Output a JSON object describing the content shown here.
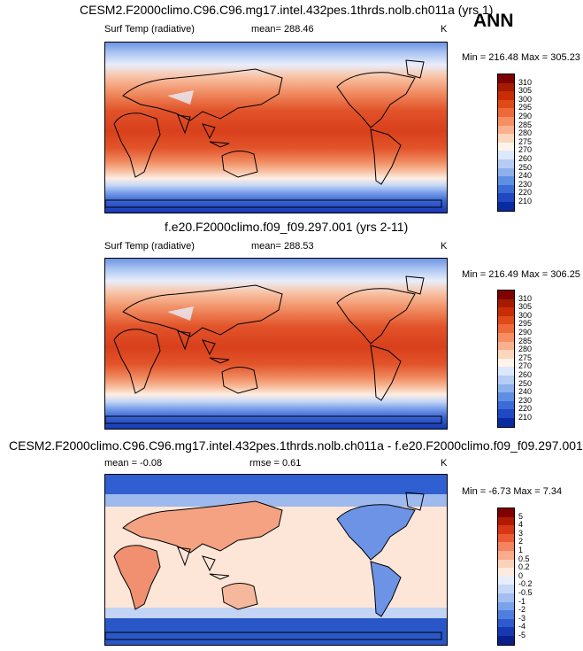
{
  "ann_label": "ANN",
  "panels": [
    {
      "title": "CESM2.F2000climo.C96.C96.mg17.intel.432pes.1thrds.nolb.ch011a (yrs 1)",
      "left_label": "Surf Temp (radiative)",
      "center_label": "mean= 288.46",
      "units": "K",
      "minmax": "Min = 216.48 Max = 305.23",
      "colorbar": {
        "labels": [
          "310",
          "305",
          "300",
          "295",
          "290",
          "285",
          "280",
          "275",
          "270",
          "260",
          "250",
          "240",
          "230",
          "220",
          "210"
        ],
        "colors": [
          "#7f0000",
          "#a51b00",
          "#c92d05",
          "#e04a18",
          "#ee6a3a",
          "#f58e63",
          "#f9b08e",
          "#fcd6bd",
          "#fff4ea",
          "#dce8fb",
          "#b5cdf5",
          "#8cb1ec",
          "#5f8fe3",
          "#3a6bd6",
          "#1f48c2",
          "#0a2aa0"
        ]
      }
    },
    {
      "title": "f.e20.F2000climo.f09_f09.297.001 (yrs 2-11)",
      "left_label": "Surf Temp (radiative)",
      "center_label": "mean= 288.53",
      "units": "K",
      "minmax": "Min = 216.49 Max = 306.25",
      "colorbar": {
        "labels": [
          "310",
          "305",
          "300",
          "295",
          "290",
          "285",
          "280",
          "275",
          "270",
          "260",
          "250",
          "240",
          "230",
          "220",
          "210"
        ],
        "colors": [
          "#7f0000",
          "#a51b00",
          "#c92d05",
          "#e04a18",
          "#ee6a3a",
          "#f58e63",
          "#f9b08e",
          "#fcd6bd",
          "#fff4ea",
          "#dce8fb",
          "#b5cdf5",
          "#8cb1ec",
          "#5f8fe3",
          "#3a6bd6",
          "#1f48c2",
          "#0a2aa0"
        ]
      }
    },
    {
      "title": "CESM2.F2000climo.C96.C96.mg17.intel.432pes.1thrds.nolb.ch011a - f.e20.F2000climo.f09_f09.297.001",
      "left_label": "mean = -0.08",
      "center_label": "rmse = 0.61",
      "units": "K",
      "minmax": "Min = -6.73 Max = 7.34",
      "colorbar": {
        "labels": [
          "5",
          "4",
          "3",
          "2",
          "1",
          "0.5",
          "0.2",
          "0",
          "-0.2",
          "-0.5",
          "-1",
          "-2",
          "-3",
          "-4",
          "-5"
        ],
        "colors": [
          "#7f0000",
          "#b01a00",
          "#d83616",
          "#ec5a34",
          "#f5835f",
          "#f9ab8b",
          "#fcd2bd",
          "#fdebe0",
          "#e6eefb",
          "#c7d8f6",
          "#a2bff0",
          "#7aa2e8",
          "#4f7ede",
          "#2d5ace",
          "#1738b0",
          "#0a1f8a"
        ]
      }
    }
  ]
}
